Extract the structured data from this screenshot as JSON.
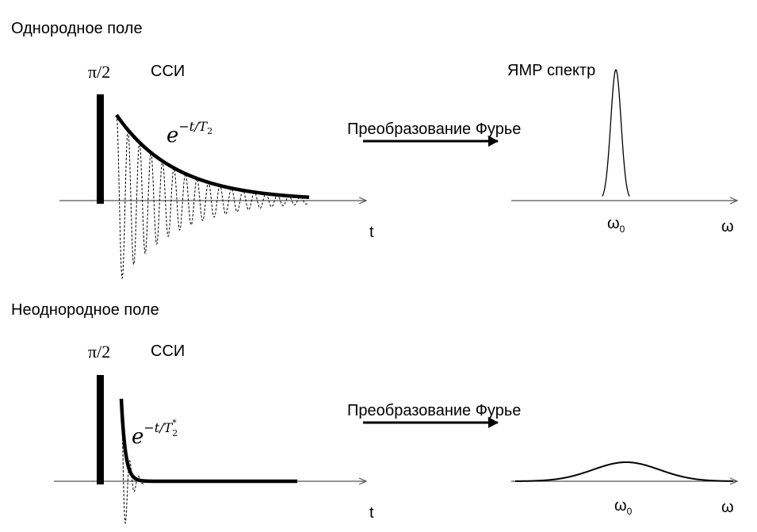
{
  "top": {
    "section_title": "Однородное поле",
    "pulse_label": "π/2",
    "fid_label": "ССИ",
    "envelope": {
      "base": "e",
      "exp_prefix": "−t/T",
      "exp_sub": "2"
    },
    "transform_label": "Преобразование Фурье",
    "spectrum_title": "ЯМР спектр",
    "time_axis_label": "t",
    "freq_axis_label": "ω",
    "peak_label": "ω",
    "peak_sub": "0"
  },
  "bottom": {
    "section_title": "Неоднородное поле",
    "pulse_label": "π/2",
    "fid_label": "ССИ",
    "envelope": {
      "base": "e",
      "exp_prefix": "−t/T",
      "exp_sub": "2",
      "exp_sup": "*"
    },
    "transform_label": "Преобразование Фурье",
    "time_axis_label": "t",
    "freq_axis_label": "ω",
    "peak_label": "ω",
    "peak_sub": "0"
  },
  "colors": {
    "line": "#000000",
    "axis": "#555555"
  }
}
